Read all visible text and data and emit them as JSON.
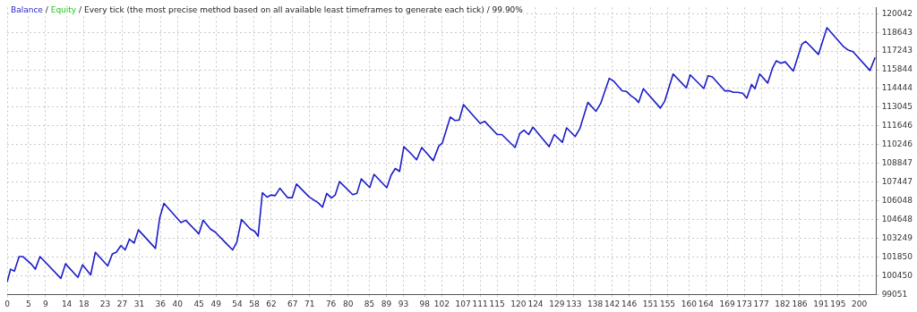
{
  "chart_data": {
    "type": "line",
    "title": "Every tick (the most precise method based on all available least timeframes to generate each tick) / 99.90%",
    "legend": "top left",
    "annotations": [
      "/",
      "/"
    ],
    "grid": true,
    "marker": "none",
    "line_style": "solid",
    "xlim": [
      0,
      204
    ],
    "xticks": [
      0,
      5,
      9,
      14,
      18,
      23,
      27,
      31,
      36,
      40,
      45,
      49,
      54,
      58,
      62,
      67,
      71,
      76,
      80,
      85,
      89,
      93,
      98,
      102,
      107,
      111,
      115,
      120,
      124,
      129,
      133,
      138,
      142,
      146,
      151,
      155,
      160,
      164,
      169,
      173,
      177,
      182,
      186,
      191,
      195,
      200
    ],
    "ylim": [
      99051,
      120500
    ],
    "yticks": [
      99051,
      100450,
      101850,
      103249,
      104648,
      106048,
      107447,
      108847,
      110246,
      111646,
      113045,
      114444,
      115844,
      117243,
      118643,
      120042
    ],
    "series": [
      {
        "name": "Balance",
        "color": "#1c1cc8",
        "x": [
          0,
          0.8,
          1.7,
          2.8,
          3.7,
          5.6,
          6.6,
          7.7,
          12.6,
          13.7,
          16.6,
          17.7,
          19.6,
          20.7,
          23.6,
          24.7,
          25.6,
          26.7,
          27.7,
          28.7,
          29.8,
          30.8,
          34.8,
          35.8,
          36.8,
          40.8,
          41.9,
          45,
          46,
          47.7,
          48.8,
          52.9,
          53.9,
          55,
          57.1,
          58.1,
          58.9,
          59.9,
          61,
          61.9,
          62.9,
          64,
          65.8,
          66.9,
          67.9,
          70.9,
          73,
          74,
          75,
          76.1,
          77,
          78,
          81.1,
          82.1,
          83.1,
          85.1,
          86.1,
          89.1,
          90.1,
          91.1,
          92.1,
          93.1,
          94.5,
          96.1,
          97.3,
          100,
          101.3,
          102.1,
          104,
          105.1,
          106.1,
          107.1,
          111,
          112.1,
          115,
          116.1,
          119.2,
          120.3,
          121.3,
          122.4,
          123.4,
          127.2,
          128.4,
          130.3,
          131.3,
          133.3,
          134.4,
          136.3,
          138.2,
          139.3,
          141.3,
          142.4,
          144.3,
          145.3,
          146.4,
          147.4,
          148.2,
          149.3,
          153.3,
          154.3,
          156.3,
          159.4,
          160.3,
          163.5,
          164.5,
          165.5,
          168.4,
          169.5,
          170.4,
          171.4,
          172.6,
          173.6,
          174.7,
          175.5,
          176.6,
          178.5,
          179.6,
          180.5,
          181.6,
          182.6,
          184.5,
          186.5,
          187.4,
          190.4,
          192.4,
          196.3,
          197.4,
          198.5,
          202.5,
          203.7
        ],
        "values": [
          99970,
          100930,
          100780,
          101870,
          101870,
          101330,
          100930,
          101870,
          100240,
          101330,
          100320,
          101260,
          100500,
          102190,
          101170,
          102080,
          102190,
          102690,
          102370,
          103170,
          102890,
          103870,
          102480,
          104760,
          105850,
          104410,
          104590,
          103570,
          104590,
          103930,
          103710,
          102370,
          102950,
          104650,
          103930,
          103760,
          103390,
          106650,
          106320,
          106480,
          106430,
          106980,
          106280,
          106280,
          107300,
          106330,
          105890,
          105570,
          106590,
          106260,
          106480,
          107480,
          106500,
          106610,
          107680,
          107040,
          108020,
          107020,
          107960,
          108460,
          108240,
          110090,
          109660,
          109110,
          110030,
          109050,
          110140,
          110350,
          112310,
          112050,
          112090,
          113240,
          111830,
          111980,
          111000,
          111000,
          110030,
          111070,
          111330,
          111000,
          111550,
          110090,
          111000,
          110420,
          111500,
          110850,
          111440,
          113400,
          112740,
          113330,
          115200,
          114980,
          114270,
          114230,
          113900,
          113680,
          113400,
          114420,
          112980,
          113480,
          115530,
          114490,
          115460,
          114440,
          115400,
          115310,
          114270,
          114270,
          114160,
          114160,
          114090,
          113730,
          114750,
          114420,
          115530,
          114850,
          115950,
          116510,
          116330,
          116440,
          115750,
          117750,
          117970,
          116990,
          118990,
          117570,
          117310,
          117200,
          115790,
          116770
        ]
      },
      {
        "name": "Equity",
        "color": "#22c822",
        "values": [
          null
        ]
      }
    ]
  }
}
